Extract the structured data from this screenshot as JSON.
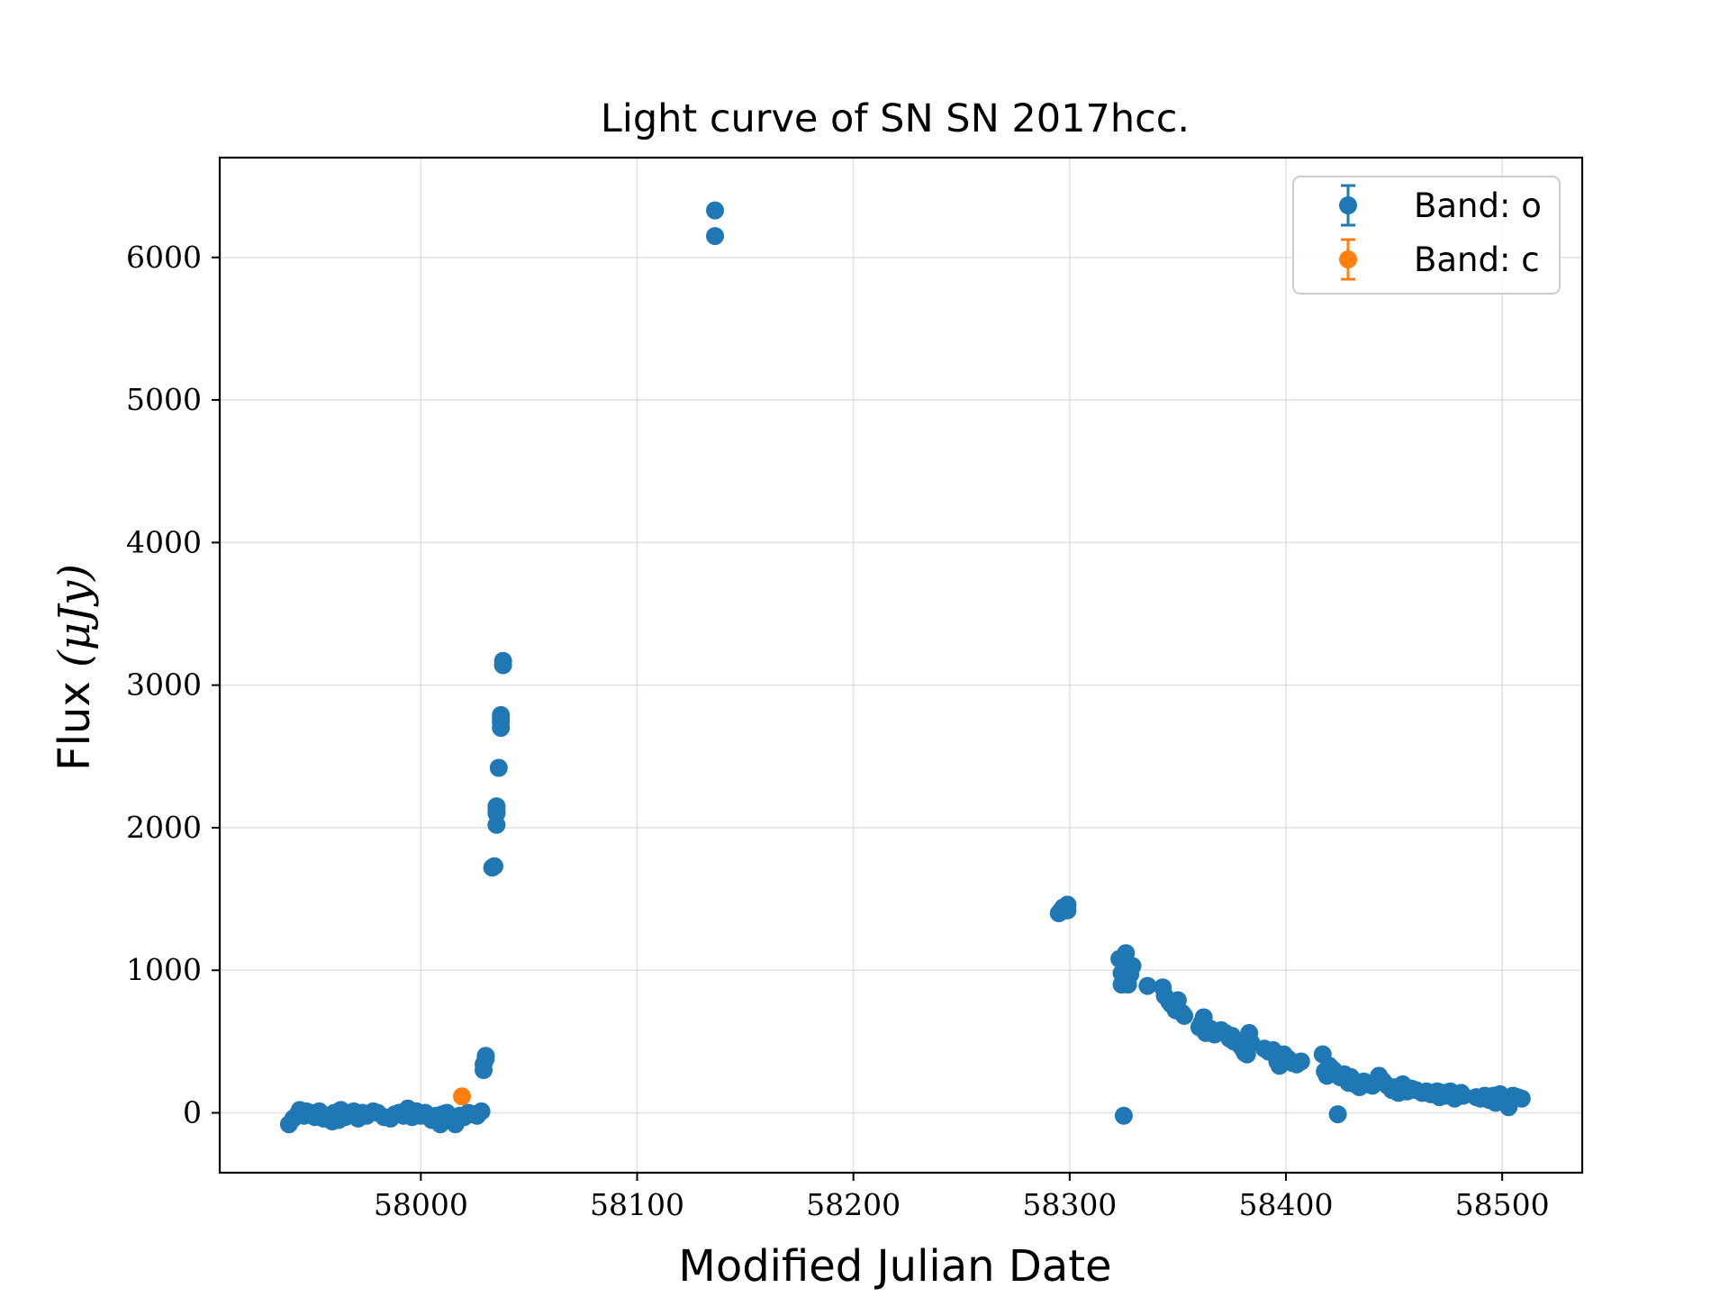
{
  "chart_data": {
    "type": "scatter",
    "title": "Light curve of SN SN 2017hcc.",
    "xlabel": "Modified Julian Date",
    "ylabel_text": "Flux ",
    "ylabel_math": "(μJy)",
    "xlim": [
      57907,
      58537
    ],
    "ylim": [
      -420,
      6700
    ],
    "xticks": [
      58000,
      58100,
      58200,
      58300,
      58400,
      58500
    ],
    "xtick_labels": [
      "58000",
      "58100",
      "58200",
      "58300",
      "58400",
      "58500"
    ],
    "yticks": [
      0,
      1000,
      2000,
      3000,
      4000,
      5000,
      6000
    ],
    "ytick_labels": [
      "0",
      "1000",
      "2000",
      "3000",
      "4000",
      "5000",
      "6000"
    ],
    "grid": true,
    "legend_position": "top-right",
    "series": [
      {
        "name": "Band: o",
        "color": "#1f77b4",
        "points": [
          [
            57939,
            -80
          ],
          [
            57941,
            -40
          ],
          [
            57943,
            -10
          ],
          [
            57944,
            20
          ],
          [
            57946,
            -20
          ],
          [
            57947,
            10
          ],
          [
            57949,
            0
          ],
          [
            57951,
            -30
          ],
          [
            57953,
            10
          ],
          [
            57955,
            -40
          ],
          [
            57957,
            -20
          ],
          [
            57959,
            -60
          ],
          [
            57960,
            0
          ],
          [
            57962,
            -50
          ],
          [
            57963,
            20
          ],
          [
            57965,
            -30
          ],
          [
            57967,
            0
          ],
          [
            57969,
            10
          ],
          [
            57971,
            -40
          ],
          [
            57973,
            0
          ],
          [
            57975,
            -20
          ],
          [
            57978,
            10
          ],
          [
            57980,
            0
          ],
          [
            57983,
            -30
          ],
          [
            57986,
            -40
          ],
          [
            57988,
            -10
          ],
          [
            57990,
            0
          ],
          [
            57992,
            -20
          ],
          [
            57994,
            30
          ],
          [
            57996,
            -30
          ],
          [
            57998,
            10
          ],
          [
            58000,
            -20
          ],
          [
            58002,
            0
          ],
          [
            58005,
            -50
          ],
          [
            58007,
            -20
          ],
          [
            58009,
            -80
          ],
          [
            58010,
            -10
          ],
          [
            58012,
            0
          ],
          [
            58014,
            -40
          ],
          [
            58016,
            -80
          ],
          [
            58018,
            -20
          ],
          [
            58020,
            -30
          ],
          [
            58022,
            0
          ],
          [
            58024,
            -10
          ],
          [
            58026,
            -20
          ],
          [
            58027,
            0
          ],
          [
            58028,
            10
          ],
          [
            58029,
            300
          ],
          [
            58029,
            340
          ],
          [
            58030,
            380
          ],
          [
            58030,
            400
          ],
          [
            58033,
            1720
          ],
          [
            58034,
            1730
          ],
          [
            58035,
            2020
          ],
          [
            58035,
            2100
          ],
          [
            58035,
            2120
          ],
          [
            58035,
            2150
          ],
          [
            58036,
            2420
          ],
          [
            58037,
            2700
          ],
          [
            58037,
            2740
          ],
          [
            58037,
            2770
          ],
          [
            58037,
            2790
          ],
          [
            58038,
            3140
          ],
          [
            58038,
            3170
          ],
          [
            58136,
            6330
          ],
          [
            58136,
            6150
          ],
          [
            58295,
            1400
          ],
          [
            58296,
            1420
          ],
          [
            58297,
            1440
          ],
          [
            58298,
            1430
          ],
          [
            58299,
            1460
          ],
          [
            58299,
            1420
          ],
          [
            58323,
            1080
          ],
          [
            58324,
            980
          ],
          [
            58324,
            900
          ],
          [
            58325,
            940
          ],
          [
            58325,
            1010
          ],
          [
            58326,
            1050
          ],
          [
            58326,
            1120
          ],
          [
            58327,
            900
          ],
          [
            58328,
            970
          ],
          [
            58329,
            1030
          ],
          [
            58325,
            -20
          ],
          [
            58336,
            890
          ],
          [
            58343,
            880
          ],
          [
            58344,
            820
          ],
          [
            58346,
            780
          ],
          [
            58347,
            760
          ],
          [
            58349,
            720
          ],
          [
            58350,
            790
          ],
          [
            58352,
            700
          ],
          [
            58353,
            680
          ],
          [
            58360,
            600
          ],
          [
            58361,
            630
          ],
          [
            58362,
            670
          ],
          [
            58363,
            560
          ],
          [
            58365,
            590
          ],
          [
            58367,
            550
          ],
          [
            58370,
            580
          ],
          [
            58372,
            560
          ],
          [
            58374,
            520
          ],
          [
            58375,
            540
          ],
          [
            58376,
            500
          ],
          [
            58378,
            490
          ],
          [
            58379,
            470
          ],
          [
            58380,
            450
          ],
          [
            58381,
            420
          ],
          [
            58382,
            410
          ],
          [
            58383,
            560
          ],
          [
            58384,
            490
          ],
          [
            58390,
            450
          ],
          [
            58392,
            430
          ],
          [
            58394,
            440
          ],
          [
            58395,
            410
          ],
          [
            58396,
            360
          ],
          [
            58397,
            330
          ],
          [
            58399,
            410
          ],
          [
            58401,
            380
          ],
          [
            58403,
            350
          ],
          [
            58405,
            340
          ],
          [
            58407,
            360
          ],
          [
            58417,
            410
          ],
          [
            58418,
            290
          ],
          [
            58419,
            260
          ],
          [
            58420,
            330
          ],
          [
            58422,
            300
          ],
          [
            58424,
            -10
          ],
          [
            58425,
            250
          ],
          [
            58427,
            270
          ],
          [
            58429,
            210
          ],
          [
            58430,
            250
          ],
          [
            58432,
            200
          ],
          [
            58434,
            180
          ],
          [
            58436,
            220
          ],
          [
            58438,
            200
          ],
          [
            58440,
            190
          ],
          [
            58443,
            260
          ],
          [
            58445,
            220
          ],
          [
            58447,
            190
          ],
          [
            58449,
            160
          ],
          [
            58451,
            180
          ],
          [
            58452,
            140
          ],
          [
            58454,
            200
          ],
          [
            58456,
            150
          ],
          [
            58458,
            170
          ],
          [
            58460,
            160
          ],
          [
            58463,
            140
          ],
          [
            58465,
            150
          ],
          [
            58467,
            130
          ],
          [
            58470,
            150
          ],
          [
            58471,
            110
          ],
          [
            58473,
            140
          ],
          [
            58474,
            120
          ],
          [
            58476,
            150
          ],
          [
            58478,
            100
          ],
          [
            58479,
            130
          ],
          [
            58481,
            140
          ],
          [
            58482,
            120
          ],
          [
            58488,
            110
          ],
          [
            58490,
            100
          ],
          [
            58492,
            120
          ],
          [
            58494,
            90
          ],
          [
            58496,
            120
          ],
          [
            58497,
            70
          ],
          [
            58499,
            130
          ],
          [
            58500,
            110
          ],
          [
            58501,
            100
          ],
          [
            58503,
            40
          ],
          [
            58505,
            120
          ],
          [
            58507,
            110
          ],
          [
            58509,
            100
          ]
        ]
      },
      {
        "name": "Band: c",
        "color": "#ff7f0e",
        "points": [
          [
            58019,
            115
          ]
        ]
      }
    ]
  }
}
